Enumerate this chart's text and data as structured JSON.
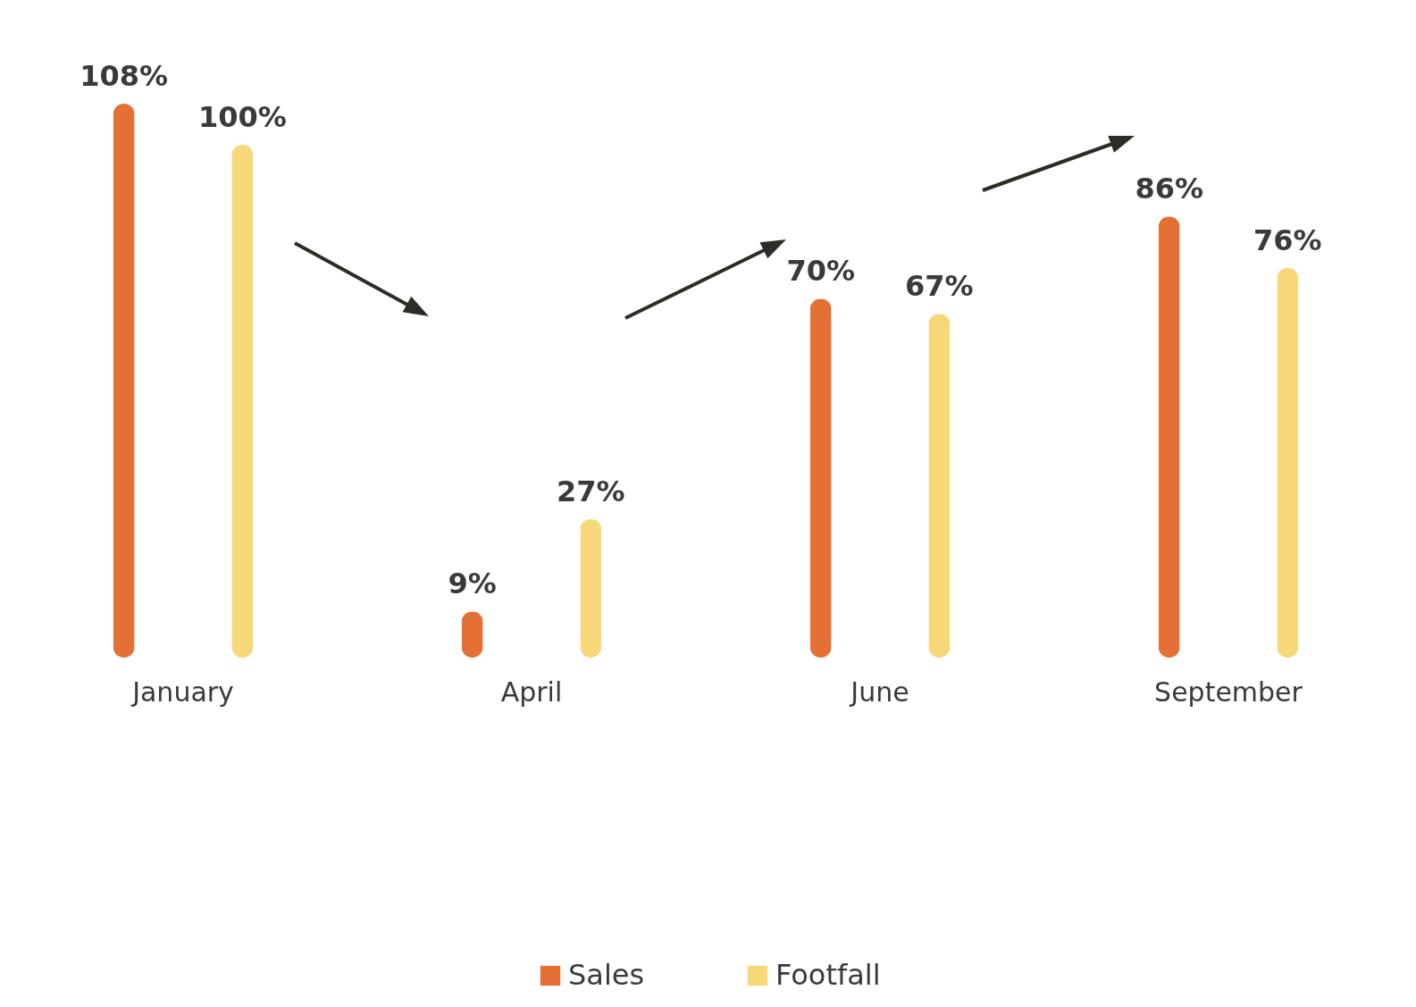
{
  "chart_data": {
    "type": "bar",
    "categories": [
      "January",
      "April",
      "June",
      "September"
    ],
    "series": [
      {
        "name": "Sales",
        "color": "#e57035",
        "values": [
          108,
          9,
          70,
          86
        ],
        "value_labels": [
          "108%",
          "9%",
          "70%",
          "86%"
        ]
      },
      {
        "name": "Footfall",
        "color": "#f6d878",
        "values": [
          100,
          27,
          67,
          76
        ],
        "value_labels": [
          "100%",
          "27%",
          "67%",
          "76%"
        ]
      }
    ],
    "legend": "bottom"
  }
}
